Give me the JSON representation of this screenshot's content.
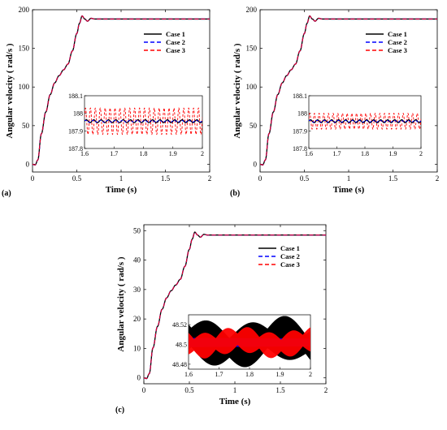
{
  "figure": {
    "panels": [
      {
        "letter": "(a)",
        "xlabel": "Time (s)",
        "ylabel": "Angular velocity ( rad/s )",
        "xlim": [
          0,
          2
        ],
        "ylim": [
          -10,
          200
        ],
        "xticks": [
          0,
          0.5,
          1,
          1.5,
          2
        ],
        "xtick_labels": [
          "0",
          "0.5",
          "1",
          "1.5",
          "2"
        ],
        "yticks": [
          0,
          50,
          100,
          150,
          200
        ],
        "ytick_labels": [
          "0",
          "50",
          "100",
          "150",
          "200"
        ],
        "steady_state": 188,
        "peak": 192,
        "legend": [
          "Case 1",
          "Case 2",
          "Case 3"
        ],
        "inset": {
          "xlim": [
            1.6,
            2
          ],
          "ylim": [
            187.8,
            188.1
          ],
          "xticks": [
            1.6,
            1.7,
            1.8,
            1.9,
            2
          ],
          "xtick_labels": [
            "1.6",
            "1.7",
            "1.8",
            "1.9",
            "2"
          ],
          "yticks": [
            187.8,
            187.9,
            188,
            188.1
          ],
          "ytick_labels": [
            "187.8",
            "187.9",
            "188",
            "188.1"
          ],
          "case1_amp": 0.008,
          "case2_amp": 0.005,
          "case3_amp": 0.075,
          "case1_freq": 40,
          "case3_freq": 60,
          "center": 187.955
        }
      },
      {
        "letter": "(b)",
        "xlabel": "Time (s)",
        "ylabel": "Angular velocity ( rad/s )",
        "xlim": [
          0,
          2
        ],
        "ylim": [
          -10,
          200
        ],
        "xticks": [
          0,
          0.5,
          1,
          1.5,
          2
        ],
        "xtick_labels": [
          "0",
          "0.5",
          "1",
          "1.5",
          "2"
        ],
        "yticks": [
          0,
          50,
          100,
          150,
          200
        ],
        "ytick_labels": [
          "0",
          "50",
          "100",
          "150",
          "200"
        ],
        "steady_state": 188,
        "peak": 192,
        "legend": [
          "Case 1",
          "Case 2",
          "Case 3"
        ],
        "inset": {
          "xlim": [
            1.6,
            2
          ],
          "ylim": [
            187.8,
            188.1
          ],
          "xticks": [
            1.6,
            1.7,
            1.8,
            1.9,
            2
          ],
          "xtick_labels": [
            "1.6",
            "1.7",
            "1.8",
            "1.9",
            "2"
          ],
          "yticks": [
            187.8,
            187.9,
            188,
            188.1
          ],
          "ytick_labels": [
            "187.8",
            "187.9",
            "188",
            "188.1"
          ],
          "case1_amp": 0.008,
          "case2_amp": 0.005,
          "case3_amp": 0.045,
          "case1_freq": 40,
          "case3_freq": 60,
          "center": 187.955
        }
      },
      {
        "letter": "(c)",
        "xlabel": "Time (s)",
        "ylabel": "Angular velocity ( rad/s )",
        "xlim": [
          0,
          2
        ],
        "ylim": [
          -2,
          52
        ],
        "xticks": [
          0,
          0.5,
          1,
          1.5,
          2
        ],
        "xtick_labels": [
          "0",
          "0.5",
          "1",
          "1.5",
          "2"
        ],
        "yticks": [
          0,
          10,
          20,
          30,
          40,
          50
        ],
        "ytick_labels": [
          "0",
          "10",
          "20",
          "30",
          "40",
          "50"
        ],
        "steady_state": 48.5,
        "peak": 49.5,
        "legend": [
          "Case 1",
          "Case 2",
          "Case 3"
        ],
        "inset": {
          "xlim": [
            1.6,
            2
          ],
          "ylim": [
            48.475,
            48.53
          ],
          "xticks": [
            1.6,
            1.7,
            1.8,
            1.9,
            2
          ],
          "xtick_labels": [
            "1.6",
            "1.7",
            "1.8",
            "1.9",
            "2"
          ],
          "yticks": [
            48.48,
            48.5,
            48.52
          ],
          "ytick_labels": [
            "48.48",
            "48.5",
            "48.52"
          ],
          "case1_amp": 0.022,
          "case2_amp": 0.006,
          "case3_amp": 0.013,
          "case1_freq": 8,
          "case3_freq": 14,
          "center": 48.502,
          "filled": true
        }
      }
    ]
  },
  "colors": {
    "case1": "#000000",
    "case2": "#0000ff",
    "case3": "#ff0000"
  },
  "chart_data": [
    {
      "type": "line",
      "title": "",
      "xlabel": "Time (s)",
      "ylabel": "Angular velocity ( rad/s )",
      "xlim": [
        0,
        2
      ],
      "ylim": [
        -10,
        200
      ],
      "series": [
        {
          "name": "Case 1",
          "x": [
            0,
            0.05,
            0.1,
            0.2,
            0.3,
            0.4,
            0.5,
            0.55,
            0.6,
            0.65,
            0.7,
            1,
            2
          ],
          "y": [
            0,
            5,
            40,
            90,
            115,
            130,
            170,
            192,
            186,
            189,
            188,
            188,
            188
          ]
        },
        {
          "name": "Case 2",
          "x": [
            0,
            0.05,
            0.1,
            0.2,
            0.3,
            0.4,
            0.5,
            0.55,
            0.6,
            0.65,
            0.7,
            1,
            2
          ],
          "y": [
            0,
            5,
            40,
            90,
            115,
            130,
            170,
            192,
            186,
            189,
            188,
            188,
            188
          ]
        },
        {
          "name": "Case 3",
          "x": [
            0,
            0.05,
            0.1,
            0.2,
            0.3,
            0.4,
            0.5,
            0.55,
            0.6,
            0.65,
            0.7,
            1,
            2
          ],
          "y": [
            0,
            5,
            40,
            90,
            115,
            130,
            170,
            192,
            186,
            189,
            188,
            188,
            188
          ]
        }
      ]
    },
    {
      "type": "line",
      "title": "",
      "xlabel": "Time (s)",
      "ylabel": "Angular velocity ( rad/s )",
      "xlim": [
        0,
        2
      ],
      "ylim": [
        -10,
        200
      ],
      "series": [
        {
          "name": "Case 1",
          "x": [
            0,
            0.05,
            0.1,
            0.2,
            0.3,
            0.4,
            0.5,
            0.55,
            0.6,
            0.65,
            0.7,
            1,
            2
          ],
          "y": [
            0,
            5,
            40,
            90,
            115,
            130,
            170,
            192,
            186,
            189,
            188,
            188,
            188
          ]
        },
        {
          "name": "Case 2",
          "x": [
            0,
            0.05,
            0.1,
            0.2,
            0.3,
            0.4,
            0.5,
            0.55,
            0.6,
            0.65,
            0.7,
            1,
            2
          ],
          "y": [
            0,
            5,
            40,
            90,
            115,
            130,
            170,
            192,
            186,
            189,
            188,
            188,
            188
          ]
        },
        {
          "name": "Case 3",
          "x": [
            0,
            0.05,
            0.1,
            0.2,
            0.3,
            0.4,
            0.5,
            0.55,
            0.6,
            0.65,
            0.7,
            1,
            2
          ],
          "y": [
            0,
            5,
            40,
            90,
            115,
            130,
            170,
            192,
            186,
            189,
            188,
            188,
            188
          ]
        }
      ]
    },
    {
      "type": "line",
      "title": "",
      "xlabel": "Time (s)",
      "ylabel": "Angular velocity ( rad/s )",
      "xlim": [
        0,
        2
      ],
      "ylim": [
        -2,
        52
      ],
      "series": [
        {
          "name": "Case 1",
          "x": [
            0,
            0.05,
            0.1,
            0.2,
            0.3,
            0.4,
            0.5,
            0.55,
            0.6,
            0.65,
            0.7,
            1,
            2
          ],
          "y": [
            0,
            1,
            10,
            23,
            30,
            34,
            44,
            49.5,
            48,
            48.8,
            48.5,
            48.5,
            48.5
          ]
        },
        {
          "name": "Case 2",
          "x": [
            0,
            0.05,
            0.1,
            0.2,
            0.3,
            0.4,
            0.5,
            0.55,
            0.6,
            0.65,
            0.7,
            1,
            2
          ],
          "y": [
            0,
            1,
            10,
            23,
            30,
            34,
            44,
            49.5,
            48,
            48.8,
            48.5,
            48.5,
            48.5
          ]
        },
        {
          "name": "Case 3",
          "x": [
            0,
            0.05,
            0.1,
            0.2,
            0.3,
            0.4,
            0.5,
            0.55,
            0.6,
            0.65,
            0.7,
            1,
            2
          ],
          "y": [
            0,
            1,
            10,
            23,
            30,
            34,
            44,
            49.5,
            48,
            48.8,
            48.5,
            48.5,
            48.5
          ]
        }
      ]
    }
  ]
}
